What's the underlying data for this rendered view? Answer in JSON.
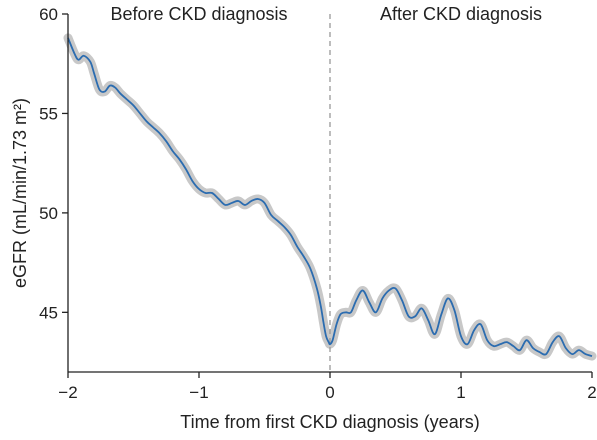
{
  "chart_data": {
    "type": "line",
    "title": "",
    "xlabel": "Time from first CKD diagnosis (years)",
    "ylabel": "eGFR (mL/min/1.73 m²)",
    "xlim": [
      -2,
      2
    ],
    "ylim": [
      42,
      60
    ],
    "xticks": [
      -2,
      -1,
      0,
      1,
      2
    ],
    "xtick_labels": [
      "−2",
      "−1",
      "0",
      "1",
      "2"
    ],
    "yticks": [
      45,
      50,
      55,
      60
    ],
    "ytick_labels": [
      "45",
      "50",
      "55",
      "60"
    ],
    "grid": false,
    "annotations": [
      {
        "text": "Before CKD diagnosis",
        "position": "top-left"
      },
      {
        "text": "After CKD diagnosis",
        "position": "top-right"
      }
    ],
    "reference_line": {
      "x": 0,
      "style": "dashed"
    },
    "colors": {
      "line": "#2b6cb0",
      "band": "#c8c8c8",
      "axis": "#222222",
      "reference": "#999999"
    },
    "series": [
      {
        "x": [
          -2.0,
          -1.95,
          -1.92,
          -1.88,
          -1.83,
          -1.8,
          -1.76,
          -1.72,
          -1.68,
          -1.64,
          -1.6,
          -1.55,
          -1.5,
          -1.45,
          -1.4,
          -1.35,
          -1.3,
          -1.25,
          -1.2,
          -1.15,
          -1.1,
          -1.05,
          -1.0,
          -0.95,
          -0.9,
          -0.85,
          -0.8,
          -0.75,
          -0.7,
          -0.65,
          -0.6,
          -0.55,
          -0.5,
          -0.45,
          -0.4,
          -0.35,
          -0.3,
          -0.25,
          -0.2,
          -0.15,
          -0.1,
          -0.07,
          -0.05,
          -0.03,
          -0.01,
          0.0,
          0.02,
          0.05,
          0.08,
          0.12,
          0.16,
          0.2,
          0.25,
          0.3,
          0.35,
          0.4,
          0.45,
          0.5,
          0.55,
          0.6,
          0.65,
          0.7,
          0.75,
          0.8,
          0.85,
          0.9,
          0.95,
          1.0,
          1.05,
          1.1,
          1.15,
          1.2,
          1.25,
          1.3,
          1.35,
          1.4,
          1.45,
          1.5,
          1.55,
          1.6,
          1.65,
          1.7,
          1.75,
          1.8,
          1.85,
          1.9,
          1.95,
          2.0
        ],
        "y": [
          58.8,
          58.0,
          57.7,
          57.9,
          57.6,
          57.0,
          56.2,
          56.1,
          56.4,
          56.3,
          56.0,
          55.7,
          55.4,
          55.0,
          54.6,
          54.3,
          54.0,
          53.6,
          53.1,
          52.7,
          52.2,
          51.6,
          51.2,
          51.0,
          51.0,
          50.7,
          50.4,
          50.5,
          50.6,
          50.4,
          50.6,
          50.7,
          50.5,
          49.9,
          49.6,
          49.3,
          48.9,
          48.3,
          47.8,
          47.2,
          46.2,
          45.3,
          44.5,
          43.8,
          43.5,
          43.4,
          43.6,
          44.4,
          44.9,
          45.0,
          45.0,
          45.6,
          46.1,
          45.5,
          45.0,
          45.7,
          46.1,
          46.2,
          45.6,
          44.8,
          44.8,
          45.2,
          44.6,
          43.9,
          44.9,
          45.7,
          45.1,
          43.8,
          43.4,
          44.1,
          44.4,
          43.6,
          43.3,
          43.4,
          43.5,
          43.3,
          43.1,
          43.6,
          43.2,
          43.0,
          42.9,
          43.5,
          43.8,
          43.2,
          42.9,
          43.1,
          42.9,
          42.8
        ]
      }
    ]
  }
}
